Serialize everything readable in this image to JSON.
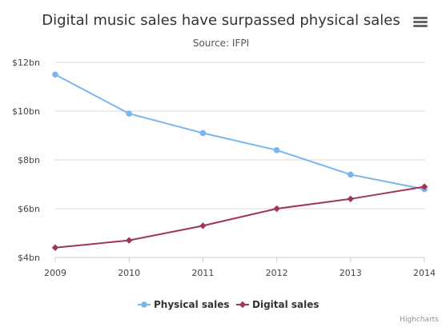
{
  "chart_data": {
    "type": "line",
    "title": "Digital music sales have surpassed physical sales",
    "subtitle": "Source: IFPI",
    "categories": [
      "2009",
      "2010",
      "2011",
      "2012",
      "2013",
      "2014"
    ],
    "ylim": [
      4,
      12
    ],
    "yticks": [
      4,
      6,
      8,
      10,
      12
    ],
    "ytick_labels": [
      "$4bn",
      "$6bn",
      "$8bn",
      "$10bn",
      "$12bn"
    ],
    "grid": true,
    "legend_position": "bottom-center",
    "series": [
      {
        "name": "Physical sales",
        "values": [
          11.5,
          9.9,
          9.1,
          8.4,
          7.4,
          6.8
        ],
        "color": "#7cb5ec",
        "marker": "circle"
      },
      {
        "name": "Digital sales",
        "values": [
          4.4,
          4.7,
          5.3,
          6.0,
          6.4,
          6.9
        ],
        "color": "#a0345e",
        "marker": "diamond"
      }
    ]
  },
  "credits": "Highcharts",
  "menu_icon": "hamburger-menu-icon"
}
